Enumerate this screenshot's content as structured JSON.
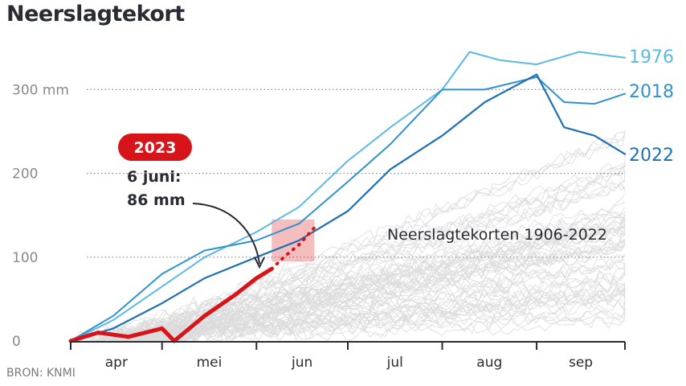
{
  "title": "Neerslagtekort",
  "source": "BRON: KNMI",
  "chart_data": {
    "type": "line",
    "title": "Neerslagtekort",
    "x_axis": {
      "range": [
        "2023-04-01",
        "2023-09-30"
      ],
      "month_labels": [
        "apr",
        "mei",
        "jun",
        "jul",
        "aug",
        "sep"
      ]
    },
    "y_axis": {
      "range": [
        0,
        350
      ],
      "ticks": [
        {
          "value": 0,
          "label": "0"
        },
        {
          "value": 100,
          "label": "100"
        },
        {
          "value": 200,
          "label": "200"
        },
        {
          "value": 300,
          "label": "300 mm"
        }
      ],
      "grid": "dotted at 100, 200, 300"
    },
    "colors": {
      "y1976": "#5fb8e6",
      "y2018": "#2f92cf",
      "y2022": "#1f6fb5",
      "y2023": "#d7141a",
      "historic": "#9a9a9a"
    },
    "series": [
      {
        "name": "1976",
        "x": [
          "2023-04-01",
          "2023-04-15",
          "2023-05-01",
          "2023-05-15",
          "2023-06-01",
          "2023-06-15",
          "2023-07-01",
          "2023-07-15",
          "2023-08-01",
          "2023-08-10",
          "2023-08-20",
          "2023-09-01",
          "2023-09-15",
          "2023-09-30"
        ],
        "y": [
          0,
          25,
          65,
          100,
          130,
          160,
          215,
          255,
          300,
          345,
          335,
          330,
          345,
          338
        ]
      },
      {
        "name": "2018",
        "x": [
          "2023-04-01",
          "2023-04-15",
          "2023-05-01",
          "2023-05-15",
          "2023-06-01",
          "2023-06-15",
          "2023-07-01",
          "2023-07-15",
          "2023-08-01",
          "2023-08-15",
          "2023-09-01",
          "2023-09-10",
          "2023-09-20",
          "2023-09-30"
        ],
        "y": [
          0,
          30,
          80,
          108,
          120,
          140,
          190,
          235,
          300,
          300,
          315,
          285,
          283,
          295
        ]
      },
      {
        "name": "2022",
        "x": [
          "2023-04-01",
          "2023-04-15",
          "2023-05-01",
          "2023-05-15",
          "2023-06-01",
          "2023-06-15",
          "2023-07-01",
          "2023-07-15",
          "2023-08-01",
          "2023-08-15",
          "2023-09-01",
          "2023-09-10",
          "2023-09-20",
          "2023-09-30"
        ],
        "y": [
          0,
          15,
          45,
          75,
          100,
          120,
          155,
          205,
          245,
          285,
          318,
          255,
          245,
          223
        ]
      },
      {
        "name": "2023",
        "x": [
          "2023-04-01",
          "2023-04-10",
          "2023-04-20",
          "2023-05-01",
          "2023-05-05",
          "2023-05-15",
          "2023-05-25",
          "2023-06-01",
          "2023-06-06"
        ],
        "y": [
          0,
          10,
          5,
          15,
          0,
          30,
          55,
          75,
          86
        ]
      },
      {
        "name": "2023",
        "x": [
          "2023-06-06",
          "2023-06-10",
          "2023-06-15",
          "2023-06-20"
        ],
        "y": [
          86,
          100,
          115,
          135
        ]
      }
    ],
    "historic_range_label": "Neerslagtekorten 1906-2022",
    "year_badge": "2023",
    "annotation": {
      "line1": "6 juni:",
      "line2": "86 mm",
      "x": "2023-06-06",
      "y": 86
    }
  }
}
